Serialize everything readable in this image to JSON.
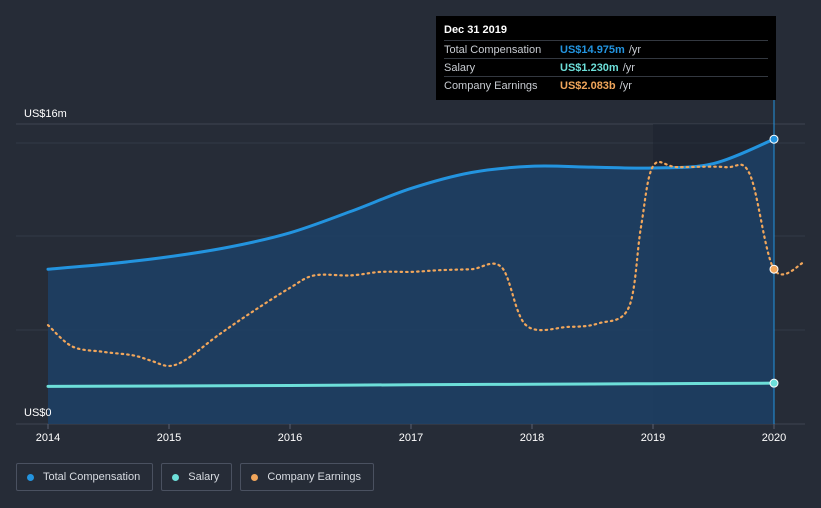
{
  "tooltip": {
    "title": "Dec 31 2019",
    "rows": [
      {
        "name": "Total Compensation",
        "value": "US$14.975m",
        "unit": "/yr",
        "color": "#2394df"
      },
      {
        "name": "Salary",
        "value": "US$1.230m",
        "unit": "/yr",
        "color": "#6ddfd9"
      },
      {
        "name": "Company Earnings",
        "value": "US$2.083b",
        "unit": "/yr",
        "color": "#f1a65b"
      }
    ]
  },
  "legend": [
    {
      "label": "Total Compensation",
      "color": "#2394df"
    },
    {
      "label": "Salary",
      "color": "#6ddfd9"
    },
    {
      "label": "Company Earnings",
      "color": "#f1a65b"
    }
  ],
  "chart_data": {
    "type": "line",
    "y_axis_labels": [
      "US$16m",
      "US$0"
    ],
    "ylim": [
      0,
      16
    ],
    "xlim": [
      2014,
      2020.25
    ],
    "x_ticks": [
      "2014",
      "2015",
      "2016",
      "2017",
      "2018",
      "2019",
      "2020"
    ],
    "grid": true,
    "highlight_range": [
      2019,
      2020
    ],
    "series": [
      {
        "name": "Total Compensation",
        "unit": "US$m",
        "color": "#2394df",
        "area": true,
        "x": [
          2014,
          2014.5,
          2015,
          2015.5,
          2016,
          2016.5,
          2017,
          2017.5,
          2018,
          2018.5,
          2019,
          2019.5,
          2020
        ],
        "y": [
          7.65,
          7.95,
          8.35,
          8.9,
          9.7,
          10.9,
          12.2,
          13.1,
          13.45,
          13.4,
          13.35,
          13.6,
          14.975
        ]
      },
      {
        "name": "Salary",
        "unit": "US$m",
        "color": "#6ddfd9",
        "area": false,
        "x": [
          2014,
          2015,
          2016,
          2017,
          2018,
          2019,
          2020
        ],
        "y": [
          1.05,
          1.07,
          1.1,
          1.14,
          1.17,
          1.2,
          1.23
        ]
      },
      {
        "name": "Company Earnings",
        "unit": "scaled to left axis",
        "color": "#f1a65b",
        "area": false,
        "dotted": true,
        "x": [
          2014,
          2014.2,
          2014.45,
          2014.7,
          2014.85,
          2015,
          2015.15,
          2015.4,
          2015.7,
          2016,
          2016.2,
          2016.5,
          2016.75,
          2017,
          2017.25,
          2017.5,
          2017.75,
          2017.95,
          2018.3,
          2018.55,
          2018.8,
          2018.9,
          2019,
          2019.2,
          2019.6,
          2019.8,
          2020,
          2020.25
        ],
        "y": [
          4.5,
          3.3,
          3.0,
          2.8,
          2.5,
          2.2,
          2.6,
          3.9,
          5.3,
          6.6,
          7.3,
          7.3,
          7.5,
          7.5,
          7.6,
          7.65,
          7.75,
          4.5,
          4.4,
          4.6,
          5.5,
          10.0,
          13.45,
          13.4,
          13.4,
          13.0,
          7.65,
          8.05
        ]
      }
    ]
  }
}
